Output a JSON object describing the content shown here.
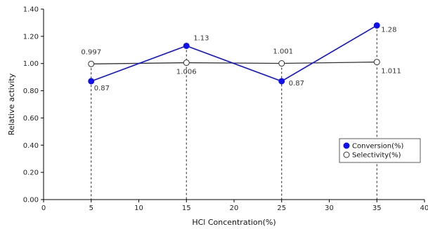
{
  "chart_data": {
    "type": "line",
    "title": "",
    "xlabel": "HCl Concentration(%)",
    "ylabel": "Relative activity",
    "xlim": [
      0,
      40
    ],
    "ylim": [
      0,
      1.4
    ],
    "x_ticks": [
      0,
      5,
      10,
      15,
      20,
      25,
      30,
      35,
      40
    ],
    "y_ticks": [
      "0.00",
      "0.20",
      "0.40",
      "0.60",
      "0.80",
      "1.00",
      "1.20",
      "1.40"
    ],
    "grid": false,
    "legend_position": "right",
    "drop_lines": true,
    "series": [
      {
        "name": "Conversion(%)",
        "color": "#1010ee",
        "marker": "filled-circle",
        "x": [
          5,
          15,
          25,
          35
        ],
        "y": [
          0.87,
          1.13,
          0.87,
          1.28
        ],
        "labels": [
          "0.87",
          "1.13",
          "0.87",
          "1.28"
        ]
      },
      {
        "name": "Selectivity(%)",
        "color": "#333333",
        "marker": "open-circle",
        "x": [
          5,
          15,
          25,
          35
        ],
        "y": [
          0.997,
          1.006,
          1.001,
          1.011
        ],
        "labels": [
          "0.997",
          "1.006",
          "1.001",
          "1.011"
        ]
      }
    ]
  }
}
